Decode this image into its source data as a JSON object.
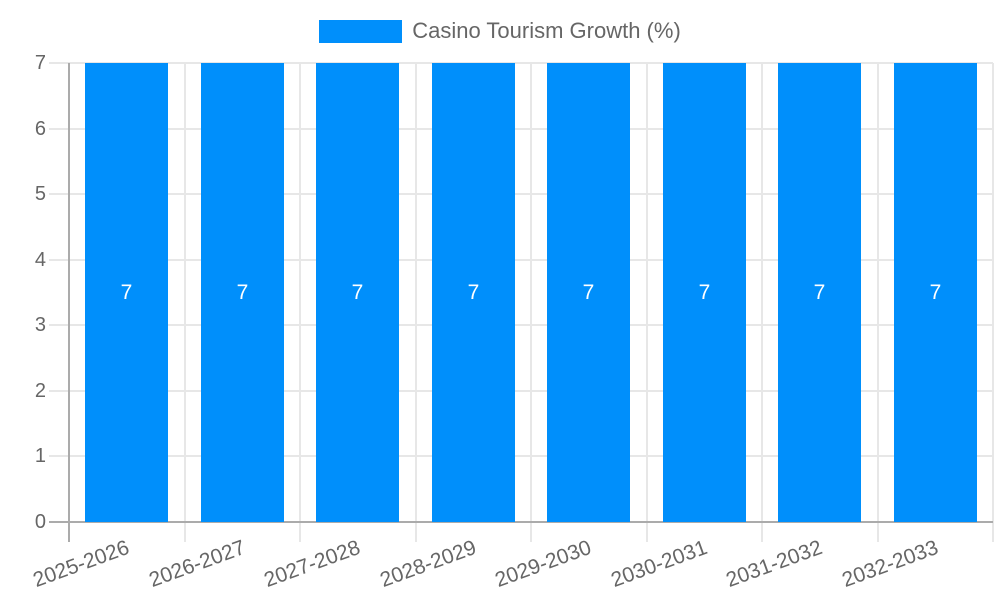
{
  "chart": {
    "legend": {
      "label": "Casino Tourism Growth (%)",
      "swatch_color": "#008FFB"
    },
    "colors": {
      "bar": "#008FFB",
      "grid": "#e7e7e7",
      "axis": "#ababab",
      "tick_text": "#666666",
      "data_label": "#ffffff",
      "background": "#ffffff"
    }
  },
  "chart_data": {
    "type": "bar",
    "title": "",
    "categories": [
      "2025-2026",
      "2026-2027",
      "2027-2028",
      "2028-2029",
      "2029-2030",
      "2030-2031",
      "2031-2032",
      "2032-2033"
    ],
    "series": [
      {
        "name": "Casino Tourism Growth (%)",
        "values": [
          7,
          7,
          7,
          7,
          7,
          7,
          7,
          7
        ]
      }
    ],
    "data_labels": [
      "7",
      "7",
      "7",
      "7",
      "7",
      "7",
      "7",
      "7"
    ],
    "xlabel": "",
    "ylabel": "",
    "ylim": [
      0,
      7
    ],
    "yticks": [
      0,
      1,
      2,
      3,
      4,
      5,
      6,
      7
    ],
    "grid": true,
    "legend_position": "top-center",
    "x_tick_rotation_deg": -20,
    "bar_color": "#008FFB",
    "data_label_color": "#ffffff"
  }
}
